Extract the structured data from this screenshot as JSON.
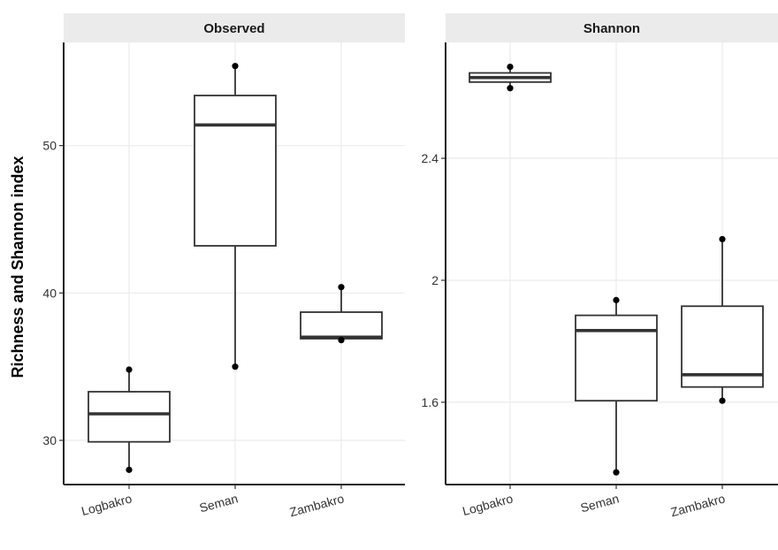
{
  "chart_data": {
    "type": "boxplot",
    "ylabel": "Richness and Shannon index",
    "categories": [
      "Logbakro",
      "Seman",
      "Zambakro"
    ],
    "grid": true,
    "panels": [
      {
        "title": "Observed",
        "ylim": [
          27,
          57
        ],
        "yticks": [
          30,
          40,
          50
        ],
        "boxes": [
          {
            "category": "Logbakro",
            "min": 28.0,
            "q1": 29.9,
            "median": 31.8,
            "q3": 33.3,
            "max": 34.8,
            "points": [
              28.0,
              34.8
            ]
          },
          {
            "category": "Seman",
            "min": 35.0,
            "q1": 43.2,
            "median": 51.4,
            "q3": 53.4,
            "max": 55.4,
            "points": [
              35.0,
              55.4
            ]
          },
          {
            "category": "Zambakro",
            "min": 36.8,
            "q1": 36.9,
            "median": 37.0,
            "q3": 38.7,
            "max": 40.4,
            "points": [
              36.8,
              40.4
            ]
          }
        ]
      },
      {
        "title": "Shannon",
        "ylim": [
          1.33,
          2.78
        ],
        "yticks": [
          1.6,
          2.0,
          2.4
        ],
        "boxes": [
          {
            "category": "Logbakro",
            "min": 2.63,
            "q1": 2.65,
            "median": 2.665,
            "q3": 2.68,
            "max": 2.7,
            "points": [
              2.63,
              2.7
            ]
          },
          {
            "category": "Seman",
            "min": 1.37,
            "q1": 1.605,
            "median": 1.835,
            "q3": 1.885,
            "max": 1.935,
            "points": [
              1.37,
              1.935
            ]
          },
          {
            "category": "Zambakro",
            "min": 1.605,
            "q1": 1.65,
            "median": 1.69,
            "q3": 1.915,
            "max": 2.135,
            "points": [
              1.605,
              2.135
            ]
          }
        ]
      }
    ]
  }
}
